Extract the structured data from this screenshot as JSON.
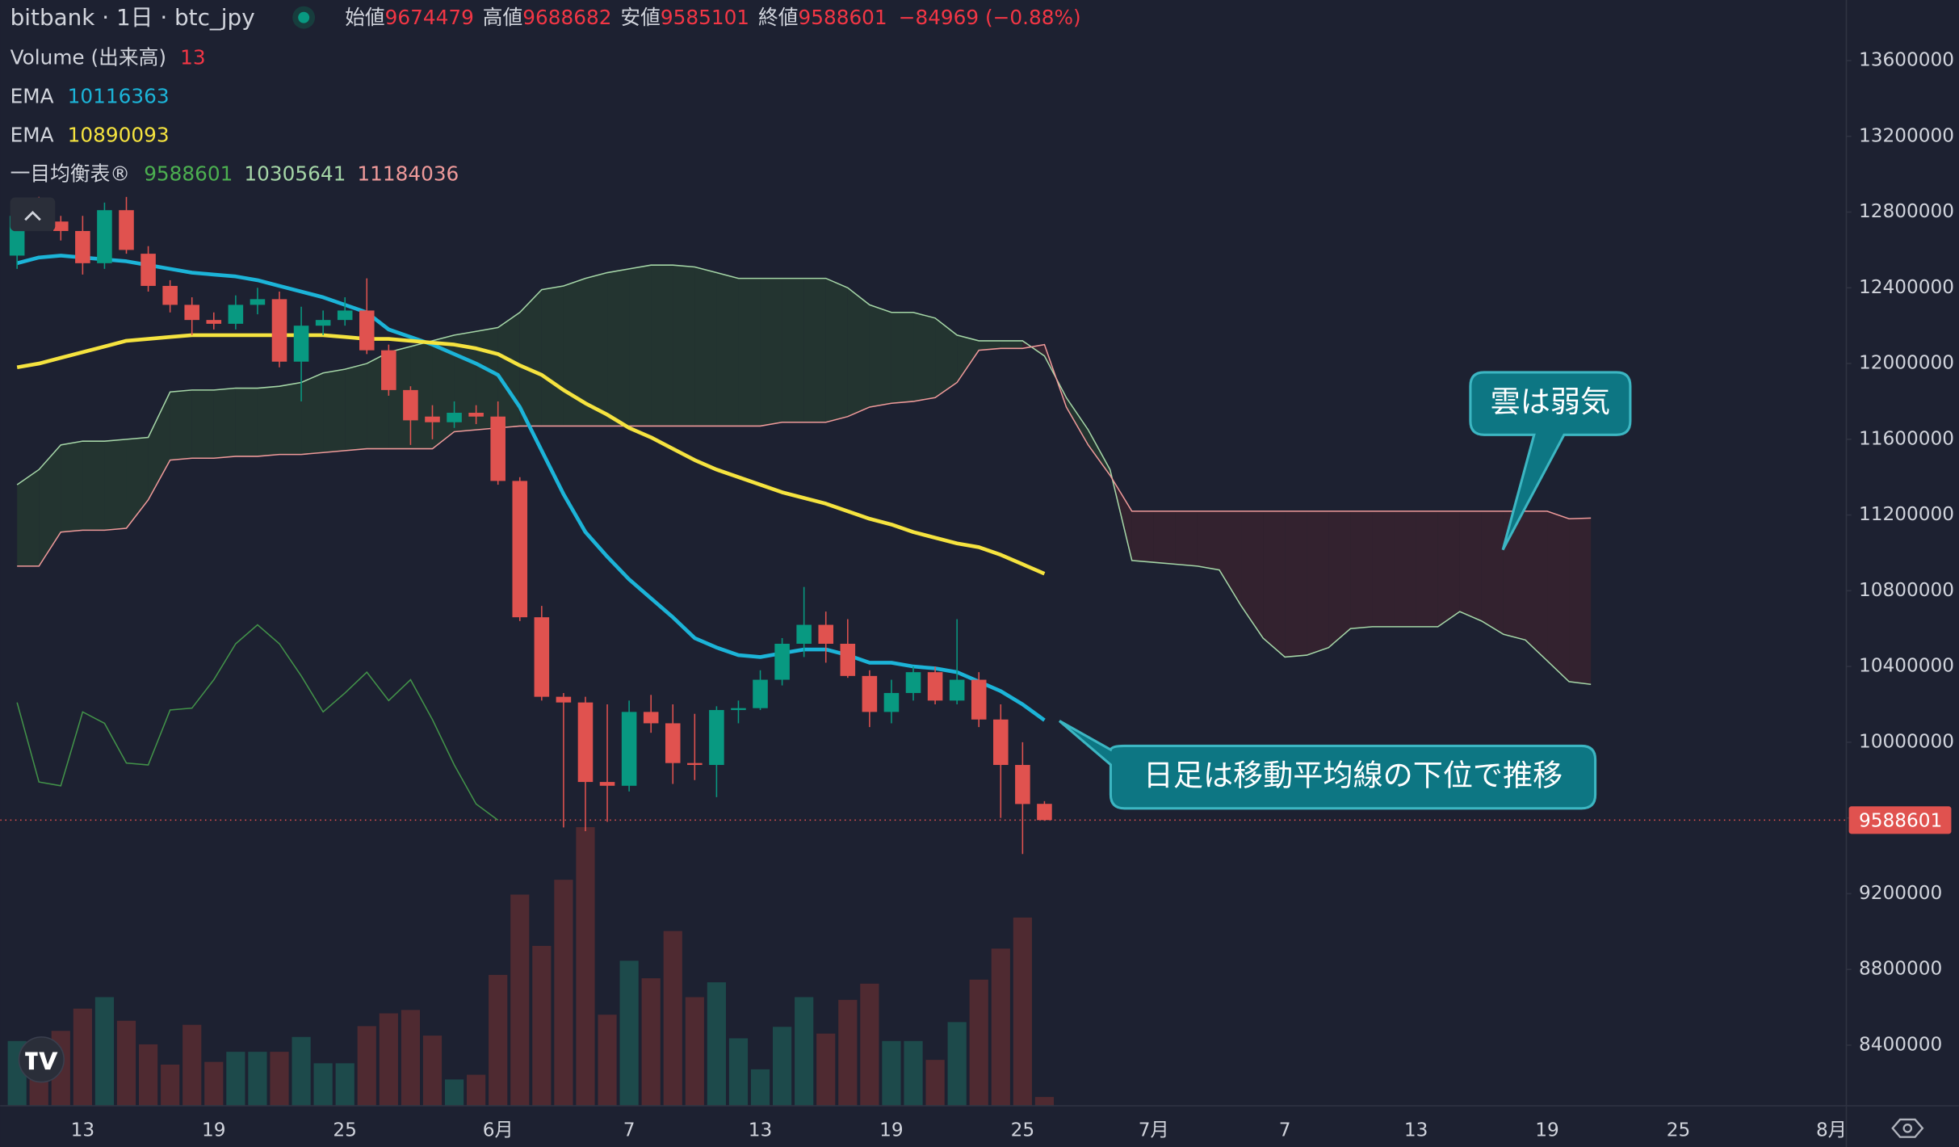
{
  "chart_data": {
    "type": "candlestick",
    "title": "bitbank · 1日 · btc_jpy",
    "ohlc_labels": [
      "始値",
      "高値",
      "安値",
      "終値"
    ],
    "change": "−84969 (−0.88%)",
    "categories": [
      null,
      null,
      null,
      "13",
      null,
      null,
      null,
      null,
      null,
      "19",
      null,
      null,
      null,
      null,
      null,
      "25",
      null,
      null,
      null,
      null,
      null,
      null,
      "6月",
      null,
      null,
      null,
      null,
      null,
      "7",
      null,
      null,
      null,
      null,
      null,
      "13",
      null,
      null,
      null,
      null,
      null,
      "19",
      null,
      null,
      null,
      null,
      null,
      "25",
      null,
      null,
      null,
      null,
      null,
      "7月",
      null,
      null,
      null,
      null,
      null,
      "7",
      null,
      null,
      null,
      null,
      null,
      "13",
      null,
      null,
      null,
      null,
      null,
      "19",
      null,
      null,
      null,
      null,
      null,
      "25",
      null,
      null,
      null,
      null,
      null,
      null,
      "8月"
    ],
    "open": [
      12570000,
      12850000,
      12750000,
      12700000,
      12530000,
      12810000,
      12580000,
      12410000,
      12310000,
      12230000,
      12210000,
      12310000,
      12340000,
      12010000,
      12200000,
      12230000,
      12280000,
      12070000,
      11860000,
      11720000,
      11690000,
      11740000,
      11720000,
      11380000,
      10660000,
      10240000,
      10210000,
      9790000,
      9770000,
      10160000,
      10100000,
      9890000,
      9880000,
      10170000,
      10180000,
      10330000,
      10520000,
      10620000,
      10520000,
      10350000,
      10160000,
      10260000,
      10370000,
      10220000,
      10330000,
      10120000,
      9880000,
      9674479,
      null,
      null,
      null,
      null,
      null,
      null,
      null,
      null,
      null,
      null,
      null,
      null,
      null,
      null,
      null,
      null,
      null,
      null,
      null,
      null,
      null,
      null,
      null,
      null,
      null,
      null,
      null,
      null,
      null,
      null,
      null,
      null,
      null,
      null,
      null,
      null
    ],
    "high": [
      12850000,
      12880000,
      12780000,
      12780000,
      12850000,
      12880000,
      12620000,
      12440000,
      12350000,
      12270000,
      12360000,
      12400000,
      12380000,
      12300000,
      12280000,
      12350000,
      12450000,
      12100000,
      11880000,
      11780000,
      11800000,
      11780000,
      11800000,
      11400000,
      10720000,
      10260000,
      10240000,
      10200000,
      10220000,
      10250000,
      10200000,
      10150000,
      10190000,
      10220000,
      10380000,
      10550000,
      10820000,
      10690000,
      10650000,
      10380000,
      10330000,
      10400000,
      10400000,
      10650000,
      10370000,
      10200000,
      10000000,
      9688682,
      null,
      null,
      null,
      null,
      null,
      null,
      null,
      null,
      null,
      null,
      null,
      null,
      null,
      null,
      null,
      null,
      null,
      null,
      null,
      null,
      null,
      null,
      null,
      null,
      null,
      null,
      null,
      null,
      null,
      null,
      null,
      null,
      null,
      null,
      null,
      null
    ],
    "low": [
      12500000,
      12700000,
      12650000,
      12470000,
      12500000,
      12580000,
      12380000,
      12270000,
      12150000,
      12180000,
      12180000,
      12260000,
      11980000,
      11800000,
      12150000,
      12200000,
      12050000,
      11830000,
      11570000,
      11600000,
      11660000,
      11680000,
      11360000,
      10640000,
      10220000,
      9550000,
      9530000,
      9580000,
      9740000,
      10050000,
      9780000,
      9800000,
      9710000,
      10100000,
      10170000,
      10300000,
      10450000,
      10420000,
      10340000,
      10080000,
      10100000,
      10220000,
      10200000,
      10200000,
      10080000,
      9600000,
      9410000,
      9585101,
      null,
      null,
      null,
      null,
      null,
      null,
      null,
      null,
      null,
      null,
      null,
      null,
      null,
      null,
      null,
      null,
      null,
      null,
      null,
      null,
      null,
      null,
      null,
      null,
      null,
      null,
      null,
      null,
      null,
      null,
      null,
      null,
      null,
      null,
      null,
      null
    ],
    "close": [
      12780000,
      12750000,
      12700000,
      12530000,
      12810000,
      12600000,
      12410000,
      12310000,
      12230000,
      12210000,
      12310000,
      12340000,
      12010000,
      12200000,
      12230000,
      12280000,
      12070000,
      11860000,
      11700000,
      11690000,
      11740000,
      11720000,
      11380000,
      10660000,
      10240000,
      10210000,
      9790000,
      9770000,
      10160000,
      10100000,
      9890000,
      9880000,
      10170000,
      10180000,
      10330000,
      10520000,
      10620000,
      10520000,
      10350000,
      10160000,
      10260000,
      10370000,
      10220000,
      10330000,
      10120000,
      9880000,
      9673570,
      9588601,
      null,
      null,
      null,
      null,
      null,
      null,
      null,
      null,
      null,
      null,
      null,
      null,
      null,
      null,
      null,
      null,
      null,
      null,
      null,
      null,
      null,
      null,
      null,
      null,
      null,
      null,
      null,
      null,
      null,
      null,
      null,
      null,
      null,
      null,
      null,
      null
    ],
    "up_color": "#089981",
    "down_color": "#e0524f",
    "ylim": [
      8080000,
      13920000
    ],
    "yticks": [
      8400000,
      8800000,
      9200000,
      9600000,
      10000000,
      10400000,
      10800000,
      11200000,
      11600000,
      12000000,
      12400000,
      12800000,
      13200000,
      13600000
    ],
    "grid": false,
    "volume": {
      "name": "Volume (出来高)",
      "up_color": "#1d4a4b",
      "down_color": "#4f2a31",
      "values": [
        96,
        96,
        111,
        144,
        161,
        126,
        91,
        61,
        120,
        65,
        80,
        80,
        80,
        102,
        63,
        63,
        118,
        137,
        142,
        104,
        39,
        46,
        194,
        313,
        237,
        335,
        413,
        135,
        215,
        189,
        259,
        161,
        183,
        100,
        54,
        117,
        161,
        107,
        157,
        181,
        96,
        96,
        68,
        124,
        187,
        233,
        279,
        13,
        null,
        null,
        null,
        null,
        null,
        null,
        null,
        null,
        null,
        null,
        null,
        null,
        null,
        null,
        null,
        null,
        null,
        null,
        null,
        null,
        null,
        null,
        null,
        null,
        null,
        null,
        null,
        null,
        null,
        null,
        null,
        null,
        null,
        null,
        null,
        null
      ]
    },
    "ema": [
      {
        "name": "EMA",
        "color": "#1cb4d8",
        "values": [
          12530000,
          12560000,
          12570000,
          12560000,
          12550000,
          12540000,
          12520000,
          12500000,
          12480000,
          12470000,
          12460000,
          12440000,
          12410000,
          12380000,
          12350000,
          12310000,
          12270000,
          12180000,
          12140000,
          12100000,
          12050000,
          12000000,
          11940000,
          11770000,
          11540000,
          11310000,
          11110000,
          10980000,
          10860000,
          10760000,
          10660000,
          10550000,
          10500000,
          10460000,
          10450000,
          10470000,
          10490000,
          10490000,
          10460000,
          10420000,
          10420000,
          10400000,
          10390000,
          10370000,
          10320000,
          10270000,
          10200000,
          10116363,
          null,
          null,
          null,
          null,
          null,
          null,
          null,
          null,
          null,
          null,
          null,
          null,
          null,
          null,
          null,
          null,
          null,
          null,
          null,
          null,
          null,
          null,
          null,
          null,
          null,
          null,
          null,
          null,
          null,
          null,
          null,
          null,
          null,
          null,
          null,
          null
        ]
      },
      {
        "name": "EMA",
        "color": "#f5e33f",
        "values": [
          11980000,
          12000000,
          12030000,
          12060000,
          12090000,
          12120000,
          12130000,
          12140000,
          12150000,
          12150000,
          12150000,
          12150000,
          12150000,
          12150000,
          12150000,
          12140000,
          12130000,
          12130000,
          12120000,
          12110000,
          12100000,
          12080000,
          12050000,
          11990000,
          11940000,
          11860000,
          11790000,
          11730000,
          11660000,
          11610000,
          11550000,
          11490000,
          11440000,
          11400000,
          11360000,
          11320000,
          11290000,
          11260000,
          11220000,
          11180000,
          11150000,
          11110000,
          11080000,
          11050000,
          11030000,
          10990000,
          10940000,
          10890093,
          null,
          null,
          null,
          null,
          null,
          null,
          null,
          null,
          null,
          null,
          null,
          null,
          null,
          null,
          null,
          null,
          null,
          null,
          null,
          null,
          null,
          null,
          null,
          null,
          null,
          null,
          null,
          null,
          null,
          null,
          null,
          null,
          null,
          null,
          null,
          null
        ]
      }
    ],
    "ichimoku": {
      "name": "一目均衡表®",
      "cloud_up_color": "#233430",
      "cloud_down_color": "#33222f",
      "lines": [
        {
          "color": "#4caf50",
          "values": [
            10210000,
            9790000,
            9770000,
            10160000,
            10100000,
            9890000,
            9880000,
            10170000,
            10180000,
            10330000,
            10520000,
            10620000,
            10520000,
            10350000,
            10160000,
            10260000,
            10370000,
            10220000,
            10330000,
            10120000,
            9880000,
            9673570,
            9588601,
            null,
            null,
            null,
            null,
            null,
            null,
            null,
            null,
            null,
            null,
            null,
            null,
            null,
            null,
            null,
            null,
            null,
            null,
            null,
            null,
            null,
            null,
            null,
            null,
            null,
            null,
            null,
            null,
            null,
            null,
            null,
            null,
            null,
            null,
            null,
            null,
            null,
            null,
            null,
            null,
            null,
            null,
            null,
            null,
            null,
            null,
            null,
            null,
            null,
            null,
            null,
            null,
            null,
            null,
            null,
            null,
            null,
            null,
            null,
            null,
            null
          ]
        },
        {
          "color": "#a5d6a7",
          "values": [
            11360000,
            11440000,
            11570000,
            11590000,
            11590000,
            11600000,
            11610000,
            11850000,
            11860000,
            11860000,
            11870000,
            11870000,
            11880000,
            11900000,
            11950000,
            11970000,
            12000000,
            12060000,
            12090000,
            12120000,
            12150000,
            12170000,
            12190000,
            12270000,
            12390000,
            12410000,
            12450000,
            12480000,
            12500000,
            12520000,
            12520000,
            12510000,
            12480000,
            12450000,
            12450000,
            12450000,
            12450000,
            12450000,
            12400000,
            12310000,
            12270000,
            12270000,
            12240000,
            12150000,
            12120000,
            12120000,
            12120000,
            12040000,
            11820000,
            11650000,
            11440000,
            10960000,
            10950000,
            10940000,
            10930000,
            10910000,
            10720000,
            10550000,
            10450000,
            10460000,
            10500000,
            10600000,
            10610000,
            10610000,
            10610000,
            10610000,
            10690000,
            10640000,
            10570000,
            10540000,
            10430000,
            10320000,
            10305641,
            null,
            null,
            null,
            null,
            null,
            null,
            null,
            null,
            null,
            null,
            null
          ]
        },
        {
          "color": "#ef9a9a",
          "values": [
            10930000,
            10930000,
            11110000,
            11120000,
            11120000,
            11130000,
            11280000,
            11490000,
            11500000,
            11500000,
            11510000,
            11510000,
            11520000,
            11520000,
            11530000,
            11540000,
            11550000,
            11550000,
            11550000,
            11550000,
            11640000,
            11650000,
            11660000,
            11670000,
            11670000,
            11670000,
            11670000,
            11670000,
            11670000,
            11670000,
            11670000,
            11670000,
            11670000,
            11670000,
            11670000,
            11690000,
            11690000,
            11690000,
            11720000,
            11770000,
            11790000,
            11800000,
            11820000,
            11900000,
            12070000,
            12080000,
            12080000,
            12100000,
            11770000,
            11570000,
            11410000,
            11220000,
            11220000,
            11220000,
            11220000,
            11220000,
            11220000,
            11220000,
            11220000,
            11220000,
            11220000,
            11220000,
            11220000,
            11220000,
            11220000,
            11220000,
            11220000,
            11220000,
            11220000,
            11220000,
            11220000,
            11180000,
            11184036,
            null,
            null,
            null,
            null,
            null,
            null,
            null,
            null,
            null,
            null,
            null
          ]
        }
      ]
    },
    "annotations": [
      {
        "text": "雲は弱気"
      },
      {
        "text": "日足は移動平均線の下位で推移"
      }
    ]
  }
}
